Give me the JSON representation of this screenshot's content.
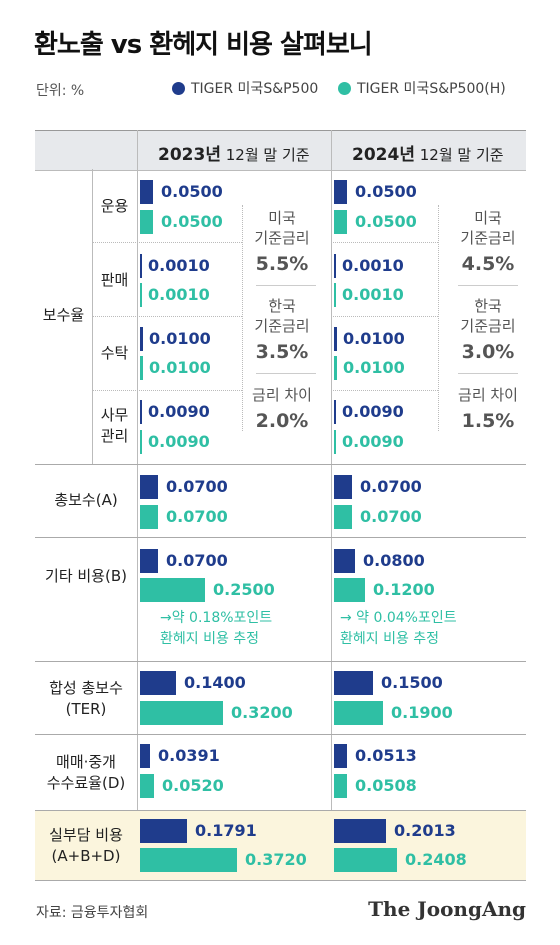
{
  "title": "환노출 vs 환헤지 비용 살펴보니",
  "unit": "단위: %",
  "legend": {
    "series_a": "TIGER 미국S&P500",
    "series_b": "TIGER 미국S&P500(H)"
  },
  "colors": {
    "series_a": "#1f3c8c",
    "series_b": "#2fbfa4"
  },
  "headers": {
    "y2023_year": "2023년",
    "y2023_suffix": " 12월 말 기준",
    "y2024_year": "2024년",
    "y2024_suffix": " 12월 말 기준"
  },
  "labels": {
    "fee_rate": "보수율",
    "mgmt": "운용",
    "sales": "판매",
    "custody": "수탁",
    "admin": "사무\n관리",
    "total": "총보수(A)",
    "other": "기타 비용(B)",
    "ter": "합성 총보수\n(TER)",
    "trading": "매매·중개\n수수료율(D)",
    "actual": "실부담 비용\n(A+B+D)"
  },
  "rates": {
    "y2023": {
      "us_label": "미국\n기준금리",
      "us": "5.5%",
      "kr_label": "한국\n기준금리",
      "kr": "3.5%",
      "diff_label": "금리 차이",
      "diff": "2.0%"
    },
    "y2024": {
      "us_label": "미국\n기준금리",
      "us": "4.5%",
      "kr_label": "한국\n기준금리",
      "kr": "3.0%",
      "diff_label": "금리 차이",
      "diff": "1.5%"
    }
  },
  "notes": {
    "y2023": "→약 0.18%포인트\n환헤지 비용 추정",
    "y2024": "→ 약 0.04%포인트\n환헤지 비용 추정"
  },
  "source": "자료: 금융투자협회",
  "brand": "The JoongAng",
  "chart_data": {
    "type": "bar",
    "categories": [
      "운용",
      "판매",
      "수탁",
      "사무관리",
      "총보수(A)",
      "기타 비용(B)",
      "합성 총보수(TER)",
      "매매·중개 수수료율(D)",
      "실부담 비용(A+B+D)"
    ],
    "series": [
      {
        "name": "TIGER 미국S&P500",
        "period": "2023년 12월 말 기준",
        "values": [
          "0.0500",
          "0.0010",
          "0.0100",
          "0.0090",
          "0.0700",
          "0.0700",
          "0.1400",
          "0.0391",
          "0.1791"
        ]
      },
      {
        "name": "TIGER 미국S&P500(H)",
        "period": "2023년 12월 말 기준",
        "values": [
          "0.0500",
          "0.0010",
          "0.0100",
          "0.0090",
          "0.0700",
          "0.2500",
          "0.3200",
          "0.0520",
          "0.3720"
        ]
      },
      {
        "name": "TIGER 미국S&P500",
        "period": "2024년 12월 말 기준",
        "values": [
          "0.0500",
          "0.0010",
          "0.0100",
          "0.0090",
          "0.0700",
          "0.0800",
          "0.1500",
          "0.0513",
          "0.2013"
        ]
      },
      {
        "name": "TIGER 미국S&P500(H)",
        "period": "2024년 12월 말 기준",
        "values": [
          "0.0500",
          "0.0010",
          "0.0100",
          "0.0090",
          "0.0700",
          "0.1200",
          "0.1900",
          "0.0508",
          "0.2408"
        ]
      }
    ]
  }
}
